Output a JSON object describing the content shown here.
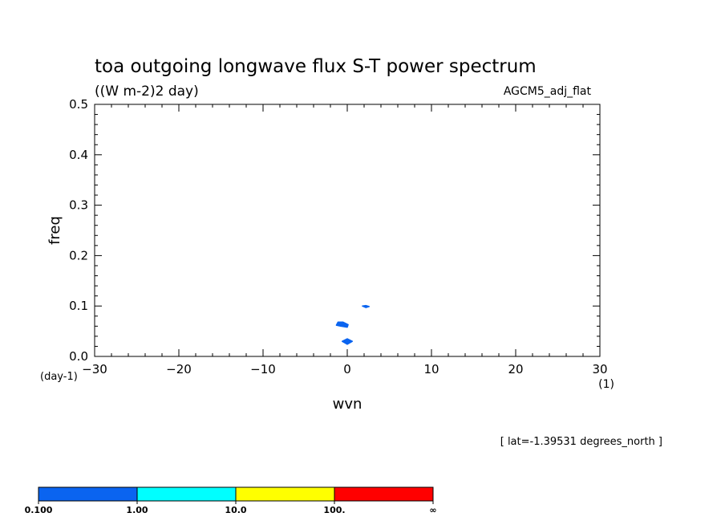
{
  "chart_data": {
    "type": "heatmap",
    "title": "toa outgoing longwave flux S-T power spectrum",
    "subtitle": "((W m-2)2 day)",
    "dataset_label": "AGCM5_adj_flat",
    "xlabel": "wvn",
    "ylabel": "freq",
    "x_unit": "(1)",
    "y_unit": "(day-1)",
    "xlim": [
      -30,
      30
    ],
    "ylim": [
      0,
      0.5
    ],
    "x_ticks": [
      "-30",
      "-20",
      "-10",
      "0",
      "10",
      "20",
      "30"
    ],
    "y_ticks": [
      "0.0",
      "0.1",
      "0.2",
      "0.3",
      "0.4",
      "0.5"
    ],
    "grid": false,
    "footnote": "[ lat=-1.39531 degrees_north ]",
    "colorbar": {
      "levels": [
        "0.100",
        "1.00",
        "10.0",
        "100.",
        "∞"
      ],
      "colors": [
        "#0a64f0",
        "#00ffff",
        "#ffff00",
        "#ff0000"
      ]
    },
    "regions": [
      {
        "level": "0.100-1.00",
        "color": "#0a64f0",
        "points": [
          [
            -1.1,
            0.068
          ],
          [
            -0.5,
            0.068
          ],
          [
            0.1,
            0.063
          ],
          [
            0.0,
            0.058
          ],
          [
            -0.8,
            0.06
          ],
          [
            -1.3,
            0.062
          ]
        ]
      },
      {
        "level": "0.100-1.00",
        "color": "#0a64f0",
        "points": [
          [
            -0.6,
            0.03
          ],
          [
            0.0,
            0.035
          ],
          [
            0.6,
            0.03
          ],
          [
            0.0,
            0.024
          ]
        ]
      },
      {
        "level": "0.100-1.00",
        "color": "#0a64f0",
        "points": [
          [
            1.8,
            0.1
          ],
          [
            2.2,
            0.101
          ],
          [
            2.6,
            0.099
          ],
          [
            2.2,
            0.097
          ]
        ]
      }
    ]
  }
}
